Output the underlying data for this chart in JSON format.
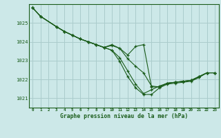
{
  "xlabel": "Graphe pression niveau de la mer (hPa)",
  "ylim": [
    1020.5,
    1026.0
  ],
  "xlim": [
    -0.5,
    23.5
  ],
  "xticks": [
    0,
    1,
    2,
    3,
    4,
    5,
    6,
    7,
    8,
    9,
    10,
    11,
    12,
    13,
    14,
    15,
    16,
    17,
    18,
    19,
    20,
    21,
    22,
    23
  ],
  "yticks": [
    1021,
    1022,
    1023,
    1024,
    1025
  ],
  "bg_color": "#cce8e8",
  "grid_color": "#aacccc",
  "line_color": "#1a5c1a",
  "lines": [
    [
      1025.8,
      1025.35,
      null,
      1024.8,
      1024.55,
      1024.35,
      1024.15,
      1024.0,
      1023.85,
      1023.7,
      1023.55,
      1022.95,
      1022.15,
      1021.55,
      1021.2,
      1021.2,
      1021.55,
      1021.75,
      1021.8,
      1021.85,
      1021.9,
      1022.1,
      1022.35,
      1022.35
    ],
    [
      1025.8,
      1025.35,
      null,
      1024.8,
      1024.55,
      1024.35,
      1024.15,
      1024.0,
      1023.85,
      1023.7,
      1023.55,
      1023.15,
      1022.45,
      1021.75,
      1021.25,
      1021.45,
      1021.65,
      1021.8,
      1021.85,
      1021.9,
      1021.95,
      1022.15,
      1022.35,
      1022.35
    ],
    [
      1025.8,
      1025.35,
      null,
      1024.8,
      1024.55,
      1024.35,
      1024.15,
      1024.0,
      1023.85,
      1023.7,
      1023.85,
      1023.65,
      1023.1,
      1022.7,
      1022.35,
      1021.65,
      1021.6,
      1021.8,
      1021.85,
      1021.9,
      1021.95,
      1022.15,
      1022.35,
      1022.35
    ],
    [
      1025.8,
      1025.35,
      null,
      1024.8,
      1024.55,
      1024.35,
      1024.15,
      1024.0,
      1023.85,
      1023.7,
      1023.8,
      1023.65,
      1023.3,
      1023.75,
      1023.85,
      1021.6,
      1021.6,
      1021.8,
      1021.85,
      1021.9,
      1021.95,
      1022.15,
      1022.35,
      1022.35
    ]
  ]
}
